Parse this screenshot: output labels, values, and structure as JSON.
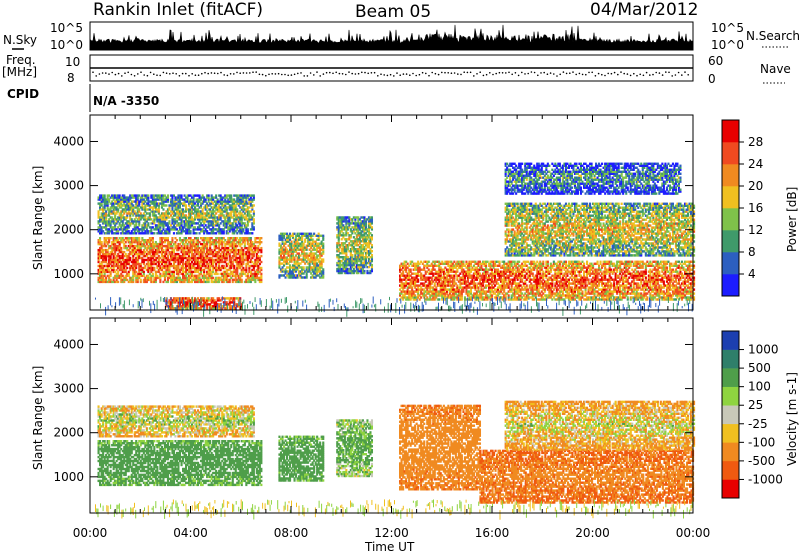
{
  "header": {
    "station": "Rankin Inlet (fitACF)",
    "beam": "Beam 05",
    "date": "04/Mar/2012"
  },
  "left_labels": {
    "nsky": "N.Sky",
    "freq_line1": "Freq.",
    "freq_line2": "[MHz]",
    "cpid": "CPID"
  },
  "right_labels": {
    "nsearch": "N.Search",
    "nave": "Nave"
  },
  "cpid_text": "N/A -3350",
  "noise_axis": {
    "top": "10^5",
    "bottom": "10^0"
  },
  "freq_axis": {
    "top": "10",
    "bottom": "8"
  },
  "nave_axis": {
    "top": "60",
    "bottom": "0"
  },
  "x_axis": {
    "label": "Time UT",
    "ticks": [
      "00:00",
      "04:00",
      "08:00",
      "12:00",
      "16:00",
      "20:00",
      "00:00"
    ]
  },
  "power_panel": {
    "ylabel": "Slant Range [km]",
    "yticks": [
      "1000",
      "2000",
      "3000",
      "4000"
    ],
    "colorbar_label": "Power [dB]",
    "colorbar_ticks": [
      "4",
      "8",
      "12",
      "16",
      "20",
      "24",
      "28"
    ],
    "colors": [
      "#1c1cff",
      "#2c5fc0",
      "#3f9a6a",
      "#7fc24a",
      "#f0c020",
      "#f08a20",
      "#f04a20",
      "#e80000"
    ]
  },
  "velocity_panel": {
    "ylabel": "Slant Range [km]",
    "yticks": [
      "1000",
      "2000",
      "3000",
      "4000"
    ],
    "colorbar_label": "Velocity [m s-1]",
    "colorbar_ticks": [
      "1000",
      "500",
      "100",
      "25",
      "-25",
      "-100",
      "-500",
      "-1000"
    ],
    "colors": [
      "#1c3fb0",
      "#2f7f6a",
      "#4f9e4a",
      "#8fd440",
      "#c8c8b8",
      "#f0c020",
      "#f08a20",
      "#f05a10",
      "#e80000"
    ]
  },
  "chart_data": [
    {
      "type": "heatmap",
      "title": "Power",
      "xlabel": "Time UT",
      "ylabel": "Slant Range [km]",
      "x_range_hours": [
        0,
        24
      ],
      "ylim": [
        180,
        4600
      ],
      "color_scale": {
        "label": "Power [dB]",
        "min": 0,
        "max": 30,
        "ticks": [
          4,
          8,
          12,
          16,
          20,
          24,
          28
        ]
      },
      "features": [
        {
          "t_start": 0.3,
          "t_end": 6.8,
          "range_min": 800,
          "range_max": 1800,
          "value": 26
        },
        {
          "t_start": 0.3,
          "t_end": 6.5,
          "range_min": 1900,
          "range_max": 2800,
          "value": 14
        },
        {
          "t_start": 3.0,
          "t_end": 6.0,
          "range_min": 200,
          "range_max": 450,
          "value": 28
        },
        {
          "t_start": 7.5,
          "t_end": 9.3,
          "range_min": 900,
          "range_max": 1900,
          "value": 18
        },
        {
          "t_start": 9.8,
          "t_end": 11.2,
          "range_min": 1000,
          "range_max": 2300,
          "value": 16
        },
        {
          "t_start": 12.3,
          "t_end": 24.0,
          "range_min": 400,
          "range_max": 1300,
          "value": 25
        },
        {
          "t_start": 16.5,
          "t_end": 24.0,
          "range_min": 1400,
          "range_max": 2600,
          "value": 18
        },
        {
          "t_start": 16.5,
          "t_end": 23.5,
          "range_min": 2800,
          "range_max": 3500,
          "value": 10
        }
      ]
    },
    {
      "type": "heatmap",
      "title": "Velocity",
      "xlabel": "Time UT",
      "ylabel": "Slant Range [km]",
      "x_range_hours": [
        0,
        24
      ],
      "ylim": [
        180,
        4600
      ],
      "color_scale": {
        "label": "Velocity [m s-1]",
        "ticks": [
          1000,
          500,
          100,
          25,
          -25,
          -100,
          -500,
          -1000
        ]
      },
      "features": [
        {
          "t_start": 0.3,
          "t_end": 6.8,
          "range_min": 800,
          "range_max": 1800,
          "value": 300
        },
        {
          "t_start": 0.3,
          "t_end": 6.5,
          "range_min": 1900,
          "range_max": 2600,
          "value": 50
        },
        {
          "t_start": 7.5,
          "t_end": 9.3,
          "range_min": 900,
          "range_max": 1900,
          "value": 300
        },
        {
          "t_start": 9.8,
          "t_end": 11.2,
          "range_min": 1000,
          "range_max": 2300,
          "value": 200
        },
        {
          "t_start": 12.3,
          "t_end": 15.5,
          "range_min": 700,
          "range_max": 2600,
          "value": -300
        },
        {
          "t_start": 15.5,
          "t_end": 24.0,
          "range_min": 400,
          "range_max": 1600,
          "value": -400
        },
        {
          "t_start": 16.5,
          "t_end": 24.0,
          "range_min": 1600,
          "range_max": 2700,
          "value": 0
        }
      ]
    }
  ]
}
